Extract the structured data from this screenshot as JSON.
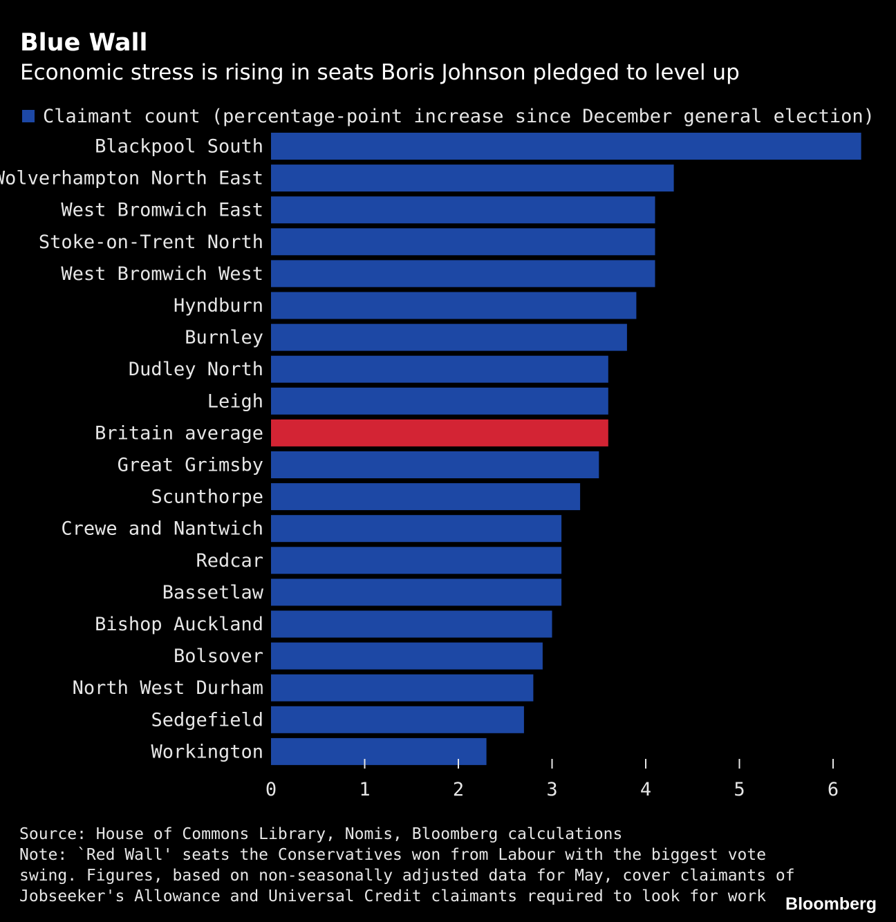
{
  "header": {
    "title": "Blue Wall",
    "subtitle": "Economic stress is rising in seats Boris Johnson pledged to level up"
  },
  "legend": {
    "label": "Claimant count (percentage-point increase since December general election)"
  },
  "chart_data": {
    "type": "bar",
    "orientation": "horizontal",
    "categories": [
      "Blackpool South",
      "Wolverhampton North East",
      "West Bromwich East",
      "Stoke-on-Trent North",
      "West Bromwich West",
      "Hyndburn",
      "Burnley",
      "Dudley North",
      "Leigh",
      "Britain average",
      "Great Grimsby",
      "Scunthorpe",
      "Crewe and Nantwich",
      "Redcar",
      "Bassetlaw",
      "Bishop Auckland",
      "Bolsover",
      "North West Durham",
      "Sedgefield",
      "Workington"
    ],
    "series": [
      {
        "name": "Claimant count (percentage-point increase since December general election)",
        "values": [
          6.3,
          4.3,
          4.1,
          4.1,
          4.1,
          3.9,
          3.8,
          3.6,
          3.6,
          3.6,
          3.5,
          3.3,
          3.1,
          3.1,
          3.1,
          3.0,
          2.9,
          2.8,
          2.7,
          2.3
        ]
      }
    ],
    "highlight_category": "Britain average",
    "xlim": [
      0,
      6.5
    ],
    "xticks": [
      "0",
      "1",
      "2",
      "3",
      "4",
      "5",
      "6"
    ],
    "grid": false,
    "legend_position": "top-left"
  },
  "colors": {
    "background": "#000000",
    "bar": "#1d48a5",
    "highlight": "#d32434",
    "text": "#e6e6e6"
  },
  "footer": {
    "source": "Source: House of Commons Library, Nomis, Bloomberg calculations",
    "note_lines": [
      "Note: `Red Wall' seats the Conservatives won from Labour with the biggest vote",
      "swing. Figures, based on non-seasonally adjusted data for May, cover claimants of",
      "Jobseeker's Allowance and Universal Credit claimants required to look for work"
    ],
    "brand": "Bloomberg"
  }
}
